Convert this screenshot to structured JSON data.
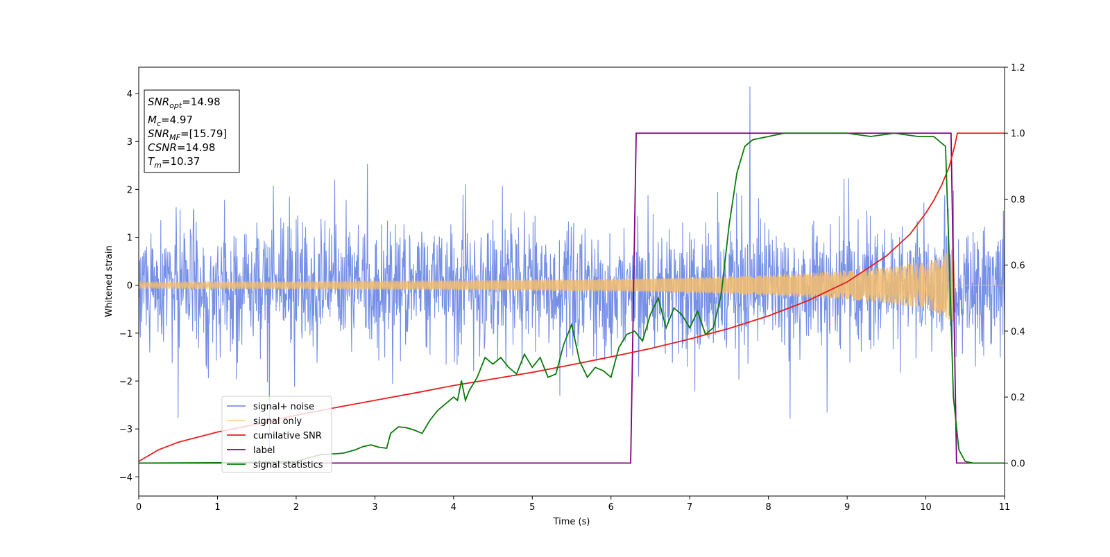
{
  "chart_data": {
    "type": "line",
    "xlabel": "Time (s)",
    "ylabel": "Whitened strain",
    "xlim": [
      0,
      11
    ],
    "ylim": [
      -4.4,
      4.55
    ],
    "y2lim": [
      -0.1,
      1.2
    ],
    "x_ticks": [
      0,
      1,
      2,
      3,
      4,
      5,
      6,
      7,
      8,
      9,
      10,
      11
    ],
    "y_ticks": [
      -4,
      -3,
      -2,
      -1,
      0,
      1,
      2,
      3,
      4
    ],
    "y2_ticks": [
      0.0,
      0.2,
      0.4,
      0.6,
      0.8,
      1.0,
      1.2
    ],
    "x_tick_labels": [
      "0",
      "1",
      "2",
      "3",
      "4",
      "5",
      "6",
      "7",
      "8",
      "9",
      "10",
      "11"
    ],
    "y_tick_labels": [
      "−4",
      "−3",
      "−2",
      "−1",
      "0",
      "1",
      "2",
      "3",
      "4"
    ],
    "y2_tick_labels": [
      "0.0",
      "0.2",
      "0.4",
      "0.6",
      "0.8",
      "1.0",
      "1.2"
    ],
    "grid": false,
    "legend_position": "lower-left",
    "info_box": {
      "snr_opt_label": "SNR",
      "snr_opt_sub": "opt",
      "snr_opt_value": "=14.98",
      "mc_label": "M",
      "mc_sub": "c",
      "mc_value": "=4.97",
      "snr_mf_label": "SNR",
      "snr_mf_sub": "MF",
      "snr_mf_value": "=[15.79]",
      "csnr_label": "CSNR",
      "csnr_value": "=14.98",
      "tm_label": "T",
      "tm_sub": "m",
      "tm_value": "=10.37"
    },
    "series": [
      {
        "name": "signal+ noise",
        "axis": "left",
        "color": "#6a87e4",
        "description_range": "noisy whitened strain fluctuating roughly between -2.5 and 2.5 with spikes to about ±4",
        "sample_rate_hz": 200,
        "x_range": [
          0,
          11
        ],
        "typical_amplitude": 1.6,
        "peak_amplitude": 4.15
      },
      {
        "name": "signal only",
        "axis": "left",
        "color": "#f5bd6c",
        "x_range": [
          0,
          10.37
        ],
        "envelope": {
          "x": [
            0,
            2,
            4,
            6,
            7,
            8,
            9,
            9.5,
            10,
            10.2,
            10.3,
            10.37
          ],
          "amplitude": [
            0.07,
            0.08,
            0.1,
            0.13,
            0.16,
            0.21,
            0.3,
            0.38,
            0.5,
            0.62,
            0.72,
            0.85
          ]
        }
      },
      {
        "name": "cumilative SNR",
        "axis": "right",
        "color": "#e81c1c",
        "x": [
          0,
          0.25,
          0.5,
          1,
          1.5,
          2,
          2.5,
          3,
          3.5,
          4,
          4.5,
          5,
          5.5,
          6,
          6.5,
          7,
          7.5,
          8,
          8.5,
          9,
          9.5,
          9.8,
          10,
          10.1,
          10.2,
          10.3,
          10.37,
          10.4,
          10.5,
          11
        ],
        "y": [
          0.005,
          0.04,
          0.063,
          0.094,
          0.118,
          0.145,
          0.168,
          0.19,
          0.212,
          0.235,
          0.255,
          0.275,
          0.298,
          0.322,
          0.347,
          0.376,
          0.408,
          0.446,
          0.492,
          0.549,
          0.628,
          0.694,
          0.758,
          0.796,
          0.842,
          0.9,
          0.965,
          1.0,
          1.0,
          1.0
        ]
      },
      {
        "name": "label",
        "axis": "right",
        "color": "#800080",
        "x": [
          0,
          6.25,
          6.32,
          10.32,
          10.39,
          11
        ],
        "y": [
          0,
          0,
          1,
          1,
          0,
          0
        ]
      },
      {
        "name": "signal statistics",
        "axis": "right",
        "color": "#0a7a0a",
        "x": [
          0,
          1,
          2,
          2.3,
          2.6,
          2.75,
          2.85,
          2.95,
          3.05,
          3.15,
          3.2,
          3.3,
          3.4,
          3.5,
          3.6,
          3.7,
          3.8,
          3.9,
          4.0,
          4.05,
          4.1,
          4.15,
          4.2,
          4.3,
          4.4,
          4.5,
          4.6,
          4.7,
          4.8,
          4.9,
          5.0,
          5.1,
          5.2,
          5.3,
          5.4,
          5.5,
          5.6,
          5.7,
          5.8,
          5.9,
          6.0,
          6.1,
          6.2,
          6.3,
          6.4,
          6.5,
          6.6,
          6.7,
          6.8,
          6.9,
          7.0,
          7.1,
          7.2,
          7.3,
          7.4,
          7.5,
          7.6,
          7.7,
          7.8,
          8.0,
          8.2,
          8.5,
          9.0,
          9.3,
          9.6,
          9.9,
          10.1,
          10.25,
          10.3,
          10.35,
          10.42,
          10.5,
          10.6,
          11
        ],
        "y": [
          0.0,
          0.001,
          0.005,
          0.025,
          0.03,
          0.04,
          0.05,
          0.055,
          0.048,
          0.045,
          0.09,
          0.11,
          0.107,
          0.1,
          0.09,
          0.13,
          0.16,
          0.18,
          0.2,
          0.19,
          0.25,
          0.19,
          0.22,
          0.26,
          0.32,
          0.3,
          0.32,
          0.29,
          0.27,
          0.33,
          0.29,
          0.32,
          0.26,
          0.27,
          0.36,
          0.42,
          0.31,
          0.26,
          0.29,
          0.28,
          0.26,
          0.35,
          0.39,
          0.4,
          0.37,
          0.45,
          0.5,
          0.41,
          0.47,
          0.45,
          0.41,
          0.46,
          0.39,
          0.41,
          0.51,
          0.72,
          0.88,
          0.96,
          0.98,
          0.99,
          1.0,
          1.0,
          1.0,
          0.99,
          1.0,
          0.99,
          0.99,
          0.96,
          0.6,
          0.2,
          0.04,
          0.005,
          0.0,
          0.0
        ]
      }
    ]
  }
}
